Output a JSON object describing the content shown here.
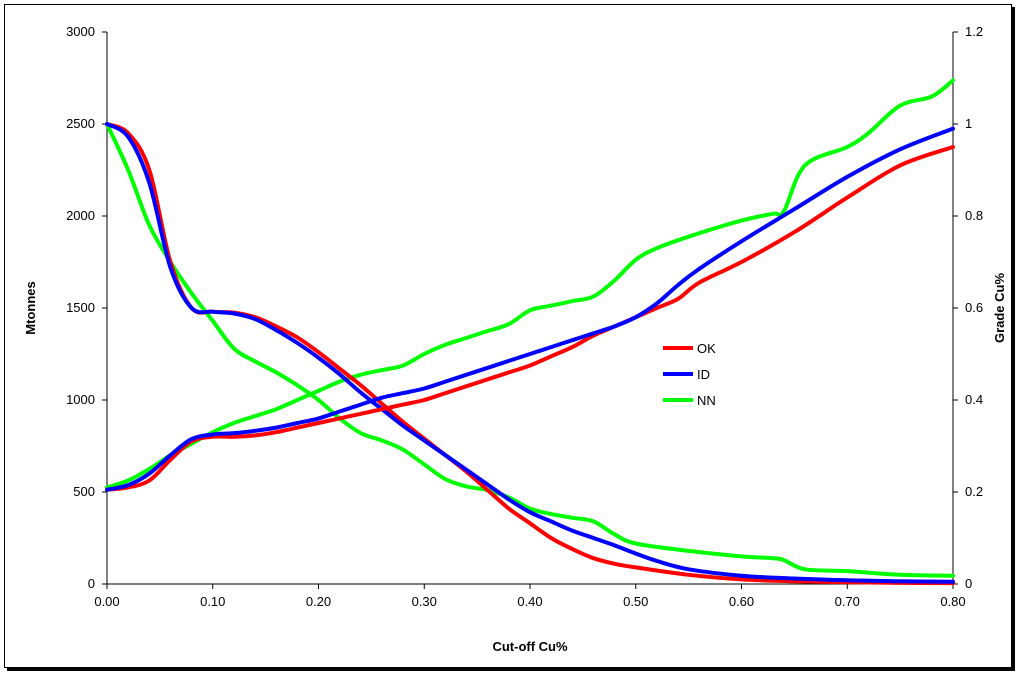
{
  "chart_data": {
    "type": "line",
    "title": "",
    "xlabel": "Cut-off Cu%",
    "ylabel_left": "Mtonnes",
    "ylabel_right": "Grade Cu%",
    "xlim": [
      0,
      0.8
    ],
    "ylim_left": [
      0,
      3000
    ],
    "ylim_right": [
      0,
      1.2
    ],
    "x_ticks": [
      "0.00",
      "0.10",
      "0.20",
      "0.30",
      "0.40",
      "0.50",
      "0.60",
      "0.70",
      "0.80"
    ],
    "y_left_ticks": [
      "0",
      "500",
      "1000",
      "1500",
      "2000",
      "2500",
      "3000"
    ],
    "y_right_ticks": [
      "0",
      "0.2",
      "0.4",
      "0.6",
      "0.8",
      "1",
      "1.2"
    ],
    "grid": false,
    "legend_position": "center-right",
    "legend": [
      {
        "name": "OK",
        "color": "#ff0000"
      },
      {
        "name": "ID",
        "color": "#0000ff"
      },
      {
        "name": "NN",
        "color": "#00ff00"
      }
    ],
    "series": [
      {
        "name": "OK",
        "axis": "left",
        "measure": "tonnes",
        "color": "#ff0000",
        "x": [
          0,
          0.02,
          0.04,
          0.06,
          0.08,
          0.1,
          0.12,
          0.14,
          0.16,
          0.18,
          0.2,
          0.22,
          0.24,
          0.26,
          0.28,
          0.3,
          0.32,
          0.34,
          0.36,
          0.38,
          0.4,
          0.42,
          0.44,
          0.46,
          0.48,
          0.5,
          0.55,
          0.6,
          0.65,
          0.7,
          0.75,
          0.8
        ],
        "y": [
          2500,
          2450,
          2250,
          1750,
          1500,
          1480,
          1475,
          1450,
          1400,
          1340,
          1260,
          1170,
          1080,
          980,
          880,
          790,
          700,
          610,
          510,
          410,
          330,
          250,
          190,
          140,
          110,
          90,
          50,
          25,
          15,
          10,
          6,
          5
        ]
      },
      {
        "name": "ID",
        "axis": "left",
        "measure": "tonnes",
        "color": "#0000ff",
        "x": [
          0,
          0.02,
          0.04,
          0.06,
          0.08,
          0.1,
          0.12,
          0.14,
          0.16,
          0.18,
          0.2,
          0.22,
          0.24,
          0.26,
          0.28,
          0.3,
          0.32,
          0.34,
          0.36,
          0.38,
          0.4,
          0.42,
          0.44,
          0.46,
          0.48,
          0.5,
          0.52,
          0.55,
          0.6,
          0.65,
          0.7,
          0.75,
          0.8
        ],
        "y": [
          2500,
          2430,
          2180,
          1720,
          1500,
          1480,
          1470,
          1440,
          1380,
          1310,
          1230,
          1140,
          1040,
          950,
          860,
          780,
          700,
          620,
          540,
          460,
          390,
          340,
          290,
          250,
          210,
          165,
          125,
          80,
          45,
          30,
          20,
          15,
          12
        ]
      },
      {
        "name": "NN",
        "axis": "left",
        "measure": "tonnes",
        "color": "#00ff00",
        "x": [
          0,
          0.02,
          0.04,
          0.06,
          0.08,
          0.1,
          0.12,
          0.14,
          0.16,
          0.18,
          0.2,
          0.22,
          0.24,
          0.26,
          0.28,
          0.3,
          0.32,
          0.34,
          0.36,
          0.38,
          0.4,
          0.42,
          0.44,
          0.46,
          0.48,
          0.5,
          0.55,
          0.6,
          0.63,
          0.64,
          0.66,
          0.7,
          0.75,
          0.8
        ],
        "y": [
          2500,
          2250,
          1950,
          1750,
          1580,
          1430,
          1280,
          1210,
          1150,
          1080,
          1000,
          900,
          820,
          780,
          730,
          650,
          570,
          530,
          510,
          470,
          410,
          380,
          360,
          340,
          270,
          220,
          180,
          150,
          140,
          130,
          80,
          70,
          50,
          45
        ]
      },
      {
        "name": "OK",
        "axis": "right",
        "measure": "grade",
        "color": "#ff0000",
        "x": [
          0,
          0.02,
          0.04,
          0.06,
          0.08,
          0.1,
          0.12,
          0.14,
          0.16,
          0.18,
          0.2,
          0.22,
          0.24,
          0.26,
          0.28,
          0.3,
          0.32,
          0.34,
          0.36,
          0.38,
          0.4,
          0.42,
          0.44,
          0.46,
          0.48,
          0.5,
          0.52,
          0.54,
          0.56,
          0.6,
          0.65,
          0.7,
          0.75,
          0.8
        ],
        "y": [
          0.205,
          0.21,
          0.225,
          0.27,
          0.31,
          0.32,
          0.32,
          0.323,
          0.33,
          0.34,
          0.35,
          0.36,
          0.37,
          0.38,
          0.39,
          0.4,
          0.415,
          0.43,
          0.445,
          0.46,
          0.475,
          0.495,
          0.515,
          0.54,
          0.56,
          0.58,
          0.6,
          0.62,
          0.655,
          0.7,
          0.765,
          0.84,
          0.91,
          0.95
        ]
      },
      {
        "name": "ID",
        "axis": "right",
        "measure": "grade",
        "color": "#0000ff",
        "x": [
          0,
          0.02,
          0.04,
          0.06,
          0.08,
          0.1,
          0.12,
          0.14,
          0.16,
          0.18,
          0.2,
          0.22,
          0.24,
          0.26,
          0.28,
          0.3,
          0.32,
          0.34,
          0.36,
          0.38,
          0.4,
          0.42,
          0.44,
          0.46,
          0.48,
          0.5,
          0.52,
          0.54,
          0.56,
          0.6,
          0.65,
          0.7,
          0.75,
          0.8
        ],
        "y": [
          0.205,
          0.215,
          0.24,
          0.28,
          0.315,
          0.325,
          0.328,
          0.333,
          0.34,
          0.35,
          0.36,
          0.375,
          0.39,
          0.405,
          0.415,
          0.425,
          0.44,
          0.455,
          0.47,
          0.485,
          0.5,
          0.515,
          0.53,
          0.545,
          0.56,
          0.58,
          0.61,
          0.65,
          0.685,
          0.745,
          0.815,
          0.885,
          0.945,
          0.99
        ]
      },
      {
        "name": "NN",
        "axis": "right",
        "measure": "grade",
        "color": "#00ff00",
        "x": [
          0,
          0.02,
          0.04,
          0.06,
          0.08,
          0.1,
          0.12,
          0.14,
          0.16,
          0.18,
          0.2,
          0.22,
          0.24,
          0.26,
          0.28,
          0.3,
          0.32,
          0.34,
          0.36,
          0.38,
          0.4,
          0.42,
          0.44,
          0.46,
          0.48,
          0.5,
          0.52,
          0.55,
          0.6,
          0.63,
          0.64,
          0.66,
          0.7,
          0.72,
          0.75,
          0.78,
          0.8
        ],
        "y": [
          0.21,
          0.225,
          0.25,
          0.28,
          0.305,
          0.33,
          0.35,
          0.365,
          0.38,
          0.4,
          0.42,
          0.44,
          0.455,
          0.465,
          0.475,
          0.5,
          0.52,
          0.535,
          0.55,
          0.565,
          0.595,
          0.605,
          0.615,
          0.625,
          0.66,
          0.705,
          0.73,
          0.755,
          0.79,
          0.805,
          0.81,
          0.91,
          0.95,
          0.98,
          1.04,
          1.06,
          1.095
        ]
      }
    ]
  }
}
